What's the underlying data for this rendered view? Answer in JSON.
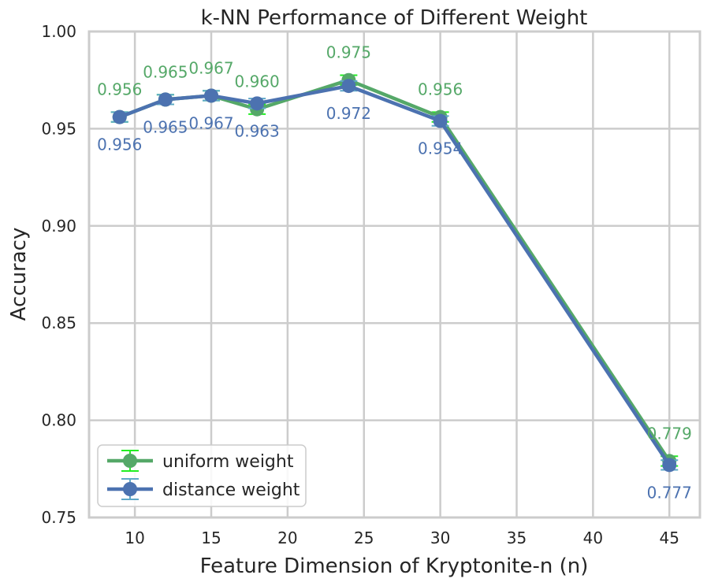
{
  "chart_data": {
    "type": "line",
    "title": "k-NN Performance of Different Weight",
    "xlabel": "Feature Dimension of Kryptonite-n (n)",
    "ylabel": "Accuracy",
    "xlim": [
      7,
      47
    ],
    "ylim": [
      0.75,
      1.0
    ],
    "xticks": [
      10,
      15,
      20,
      25,
      30,
      35,
      40,
      45
    ],
    "yticks": [
      0.75,
      0.8,
      0.85,
      0.9,
      0.95,
      1.0
    ],
    "xtick_labels": [
      "10",
      "15",
      "20",
      "25",
      "30",
      "35",
      "40",
      "45"
    ],
    "ytick_labels": [
      "0.75",
      "0.80",
      "0.85",
      "0.90",
      "0.95",
      "1.00"
    ],
    "grid": true,
    "legend_position": "lower-left",
    "series": [
      {
        "name": "uniform weight",
        "color": "#55a868",
        "errcolor": "#22ee22",
        "x": [
          9,
          12,
          15,
          18,
          24,
          30,
          45
        ],
        "y": [
          0.956,
          0.965,
          0.967,
          0.96,
          0.975,
          0.956,
          0.779
        ],
        "err": [
          0.0025,
          0.0025,
          0.0025,
          0.0025,
          0.0025,
          0.0025,
          0.0025
        ],
        "labels": [
          "0.956",
          "0.965",
          "0.967",
          "0.960",
          "0.975",
          "0.956",
          "0.779"
        ],
        "label_position": "above"
      },
      {
        "name": "distance weight",
        "color": "#4c72b0",
        "errcolor": "#5fa8c8",
        "x": [
          9,
          12,
          15,
          18,
          24,
          30,
          45
        ],
        "y": [
          0.956,
          0.965,
          0.967,
          0.963,
          0.972,
          0.954,
          0.777
        ],
        "err": [
          0.0025,
          0.0025,
          0.0025,
          0.0025,
          0.0025,
          0.0025,
          0.0025
        ],
        "labels": [
          "0.956",
          "0.965",
          "0.967",
          "0.963",
          "0.972",
          "0.954",
          "0.777"
        ],
        "label_position": "below"
      }
    ]
  }
}
